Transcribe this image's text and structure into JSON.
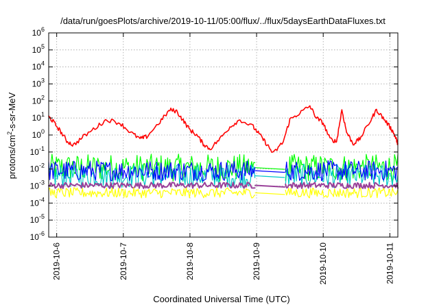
{
  "chart_data": {
    "type": "line",
    "title": "/data/run/goesPlots/archive/2019-10-11/05:00/flux/../flux/5daysEarthDataFluxes.txt",
    "xlabel": "Coordinated Universal Time (UTC)",
    "ylabel": "protons/cm²-s-sr-MeV",
    "ylabel_parts": {
      "base": "protons/cm",
      "sup": "2",
      "rest": "-s-sr-MeV"
    },
    "x_ticks": [
      "2019-10-6",
      "2019-10-7",
      "2019-10-8",
      "2019-10-9",
      "2019-10-10",
      "2019-10-11"
    ],
    "xlim_days": [
      -0.12,
      5.12
    ],
    "y_scale": "log",
    "ylim": [
      1e-06,
      1000000.0
    ],
    "y_tick_exponents": [
      6,
      5,
      4,
      3,
      2,
      1,
      0,
      -1,
      -2,
      -3,
      -4,
      -5,
      -6
    ],
    "y_tick_base": "10",
    "grid": true,
    "data_gap": {
      "start_day": 2.98,
      "end_day": 3.42
    },
    "series": [
      {
        "color": "#ff0000",
        "style": "line",
        "values": [
          [
            -0.12,
            12
          ],
          [
            -0.05,
            6
          ],
          [
            0.05,
            1.8
          ],
          [
            0.15,
            0.45
          ],
          [
            0.25,
            0.25
          ],
          [
            0.4,
            0.8
          ],
          [
            0.6,
            3
          ],
          [
            0.75,
            8
          ],
          [
            0.95,
            5
          ],
          [
            1.1,
            1.5
          ],
          [
            1.25,
            0.6
          ],
          [
            1.35,
            0.8
          ],
          [
            1.55,
            6
          ],
          [
            1.7,
            30
          ],
          [
            1.8,
            25
          ],
          [
            1.9,
            7
          ],
          [
            2.0,
            2
          ],
          [
            2.1,
            1
          ],
          [
            2.2,
            0.3
          ],
          [
            2.3,
            0.15
          ],
          [
            2.45,
            0.6
          ],
          [
            2.6,
            3
          ],
          [
            2.75,
            8
          ],
          [
            2.95,
            3
          ],
          [
            3.05,
            1
          ],
          [
            3.15,
            0.3
          ],
          [
            3.25,
            0.08
          ],
          [
            3.4,
            0.4
          ],
          [
            3.5,
            8
          ],
          [
            3.65,
            20
          ],
          [
            3.8,
            50
          ],
          [
            3.9,
            10
          ],
          [
            4.0,
            5
          ],
          [
            4.1,
            0.6
          ],
          [
            4.2,
            0.4
          ],
          [
            4.28,
            30
          ],
          [
            4.35,
            1.5
          ],
          [
            4.45,
            0.3
          ],
          [
            4.55,
            0.6
          ],
          [
            4.7,
            6
          ],
          [
            4.8,
            30
          ],
          [
            4.9,
            10
          ],
          [
            5.0,
            3
          ],
          [
            5.05,
            1.5
          ],
          [
            5.1,
            0.5
          ],
          [
            5.12,
            0.3
          ]
        ]
      },
      {
        "color": "#00ff00",
        "style": "noisy-band",
        "center": 0.012,
        "spread_decades": 0.8
      },
      {
        "color": "#00c8c8",
        "style": "noisy-band",
        "center": 0.004,
        "spread_decades": 0.7
      },
      {
        "color": "#0000ff",
        "style": "noisy-band",
        "center": 0.008,
        "spread_decades": 0.6
      },
      {
        "color": "#994099",
        "style": "noisy-band",
        "center": 0.0011,
        "spread_decades": 0.18
      },
      {
        "color": "#ffff00",
        "style": "noisy-band",
        "center": 0.0004,
        "spread_decades": 0.3
      }
    ]
  }
}
